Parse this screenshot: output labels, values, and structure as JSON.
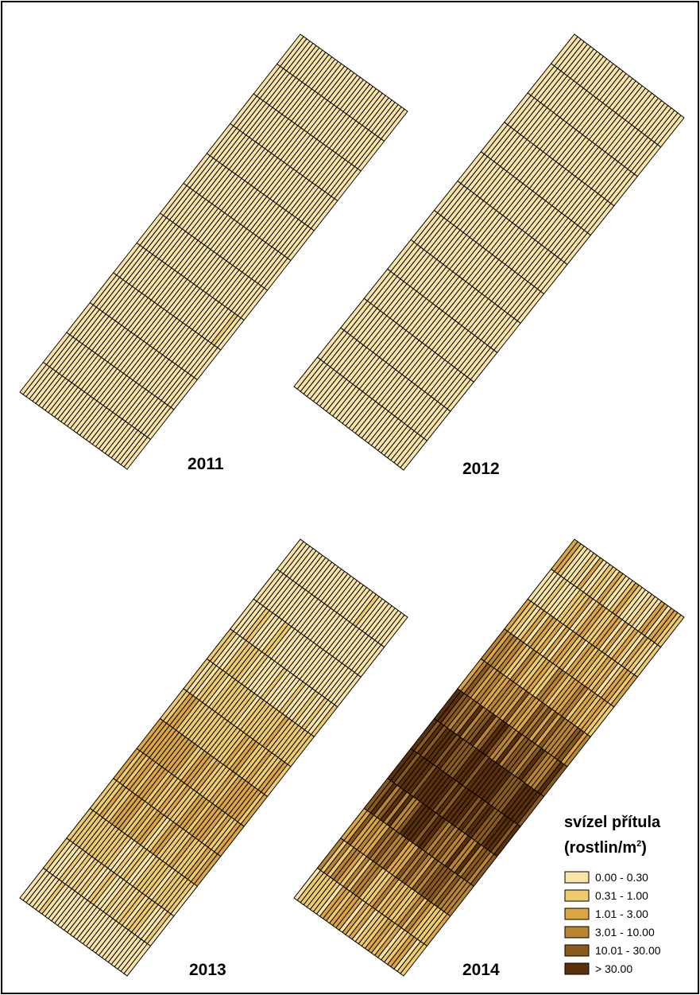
{
  "maps": [
    {
      "year": "2011",
      "seed": 11,
      "intensity": 0.18
    },
    {
      "year": "2012",
      "seed": 12,
      "intensity": 0.02
    },
    {
      "year": "2013",
      "seed": 13,
      "intensity": 0.45
    },
    {
      "year": "2014",
      "seed": 14,
      "intensity": 1.0
    }
  ],
  "legend": {
    "title_line1": "svízel přítula",
    "title_line2_prefix": "(rostlin/m",
    "title_line2_sup": "2",
    "title_line2_suffix": ")",
    "classes": [
      {
        "label": "0.00 - 0.30",
        "color": "#f8e4a6"
      },
      {
        "label": "0.31 - 1.00",
        "color": "#eecb6c"
      },
      {
        "label": "1.01 - 3.00",
        "color": "#dca642"
      },
      {
        "label": "3.01 - 10.00",
        "color": "#b98531"
      },
      {
        "label": "10.01 - 30.00",
        "color": "#8a5a1c"
      },
      {
        "label": "> 30.00",
        "color": "#5a3008"
      }
    ]
  },
  "grid_color": "#000000"
}
